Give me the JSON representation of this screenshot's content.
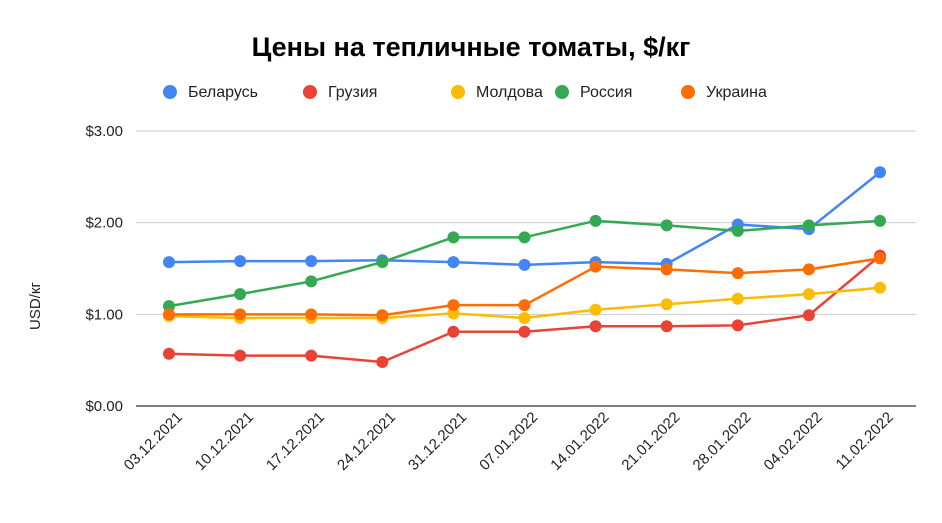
{
  "chart_data": {
    "type": "line",
    "title": "Цены на тепличные томаты, $/кг",
    "xlabel": "",
    "ylabel": "USD/кг",
    "ylim": [
      0,
      3
    ],
    "y_ticks": [
      0,
      1,
      2,
      3
    ],
    "y_tick_labels": [
      "$0.00",
      "$1.00",
      "$2.00",
      "$3.00"
    ],
    "grid": true,
    "legend_position": "top",
    "categories": [
      "03.12.2021",
      "10.12.2021",
      "17.12.2021",
      "24.12.2021",
      "31.12.2021",
      "07.01.2022",
      "14.01.2022",
      "21.01.2022",
      "28.01.2022",
      "04.02.2022",
      "11.02.2022"
    ],
    "series": [
      {
        "name": "Беларусь",
        "color": "#4285F4",
        "values": [
          1.57,
          1.58,
          1.58,
          1.59,
          1.57,
          1.54,
          1.57,
          1.55,
          1.98,
          1.93,
          2.55
        ]
      },
      {
        "name": "Грузия",
        "color": "#EA4335",
        "values": [
          0.57,
          0.55,
          0.55,
          0.48,
          0.81,
          0.81,
          0.87,
          0.87,
          0.88,
          0.99,
          1.64
        ]
      },
      {
        "name": "Молдова",
        "color": "#FBBC04",
        "values": [
          0.98,
          0.96,
          0.96,
          0.96,
          1.01,
          0.96,
          1.05,
          1.11,
          1.17,
          1.22,
          1.29
        ]
      },
      {
        "name": "Россия",
        "color": "#34A853",
        "values": [
          1.09,
          1.22,
          1.36,
          1.57,
          1.84,
          1.84,
          2.02,
          1.97,
          1.91,
          1.97,
          2.02
        ]
      },
      {
        "name": "Украина",
        "color": "#FF6D01",
        "values": [
          1.0,
          1.0,
          1.0,
          0.99,
          1.1,
          1.1,
          1.52,
          1.49,
          1.45,
          1.49,
          1.61
        ]
      }
    ]
  }
}
